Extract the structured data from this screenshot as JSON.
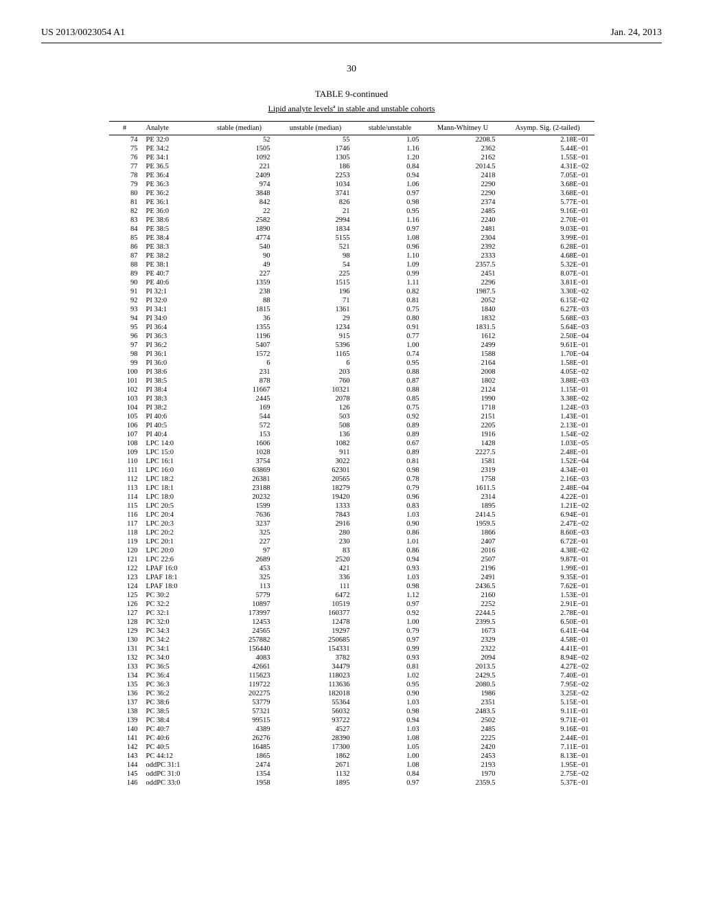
{
  "header": {
    "left": "US 2013/0023054 A1",
    "right": "Jan. 24, 2013"
  },
  "page_number": "30",
  "table": {
    "caption": "TABLE 9-continued",
    "subcaption": "Lipid analyte levelsª in stable and unstable cohorts",
    "columns": [
      "#",
      "Analyte",
      "stable (median)",
      "unstable (median)",
      "stable/unstable",
      "Mann-Whitney U",
      "Asymp. Sig. (2-tailed)"
    ],
    "rows": [
      [
        "74",
        "PE 32:0",
        "52",
        "55",
        "1.05",
        "2208.5",
        "2.18E−01"
      ],
      [
        "75",
        "PE 34:2",
        "1505",
        "1746",
        "1.16",
        "2362",
        "5.44E−01"
      ],
      [
        "76",
        "PE 34:1",
        "1092",
        "1305",
        "1.20",
        "2162",
        "1.55E−01"
      ],
      [
        "77",
        "PE 36.5",
        "221",
        "186",
        "0.84",
        "2014.5",
        "4.31E−02"
      ],
      [
        "78",
        "PE 36:4",
        "2409",
        "2253",
        "0.94",
        "2418",
        "7.05E−01"
      ],
      [
        "79",
        "PE 36:3",
        "974",
        "1034",
        "1.06",
        "2290",
        "3.68E−01"
      ],
      [
        "80",
        "PE 36:2",
        "3848",
        "3741",
        "0.97",
        "2290",
        "3.68E−01"
      ],
      [
        "81",
        "PE 36:1",
        "842",
        "826",
        "0.98",
        "2374",
        "5.77E−01"
      ],
      [
        "82",
        "PE 36:0",
        "22",
        "21",
        "0.95",
        "2485",
        "9.16E−01"
      ],
      [
        "83",
        "PE 38:6",
        "2582",
        "2994",
        "1.16",
        "2240",
        "2.70E−01"
      ],
      [
        "84",
        "PE 38:5",
        "1890",
        "1834",
        "0.97",
        "2481",
        "9.03E−01"
      ],
      [
        "85",
        "PE 38:4",
        "4774",
        "5155",
        "1.08",
        "2304",
        "3.99E−01"
      ],
      [
        "86",
        "PE 38:3",
        "540",
        "521",
        "0.96",
        "2392",
        "6.28E−01"
      ],
      [
        "87",
        "PE 38:2",
        "90",
        "98",
        "1.10",
        "2333",
        "4.68E−01"
      ],
      [
        "88",
        "PE 38:1",
        "49",
        "54",
        "1.09",
        "2357.5",
        "5.32E−01"
      ],
      [
        "89",
        "PE 40:7",
        "227",
        "225",
        "0.99",
        "2451",
        "8.07E−01"
      ],
      [
        "90",
        "PE 40:6",
        "1359",
        "1515",
        "1.11",
        "2296",
        "3.81E−01"
      ],
      [
        "91",
        "PI 32:1",
        "238",
        "196",
        "0.82",
        "1987.5",
        "3.30E−02"
      ],
      [
        "92",
        "PI 32:0",
        "88",
        "71",
        "0.81",
        "2052",
        "6.15E−02"
      ],
      [
        "93",
        "PI 34:1",
        "1815",
        "1361",
        "0.75",
        "1840",
        "6.27E−03"
      ],
      [
        "94",
        "PI 34:0",
        "36",
        "29",
        "0.80",
        "1832",
        "5.68E−03"
      ],
      [
        "95",
        "PI 36:4",
        "1355",
        "1234",
        "0.91",
        "1831.5",
        "5.64E−03"
      ],
      [
        "96",
        "PI 36:3",
        "1196",
        "915",
        "0.77",
        "1612",
        "2.50E−04"
      ],
      [
        "97",
        "PI 36:2",
        "5407",
        "5396",
        "1.00",
        "2499",
        "9.61E−01"
      ],
      [
        "98",
        "PI 36:1",
        "1572",
        "1165",
        "0.74",
        "1588",
        "1.70E−04"
      ],
      [
        "99",
        "PI 36:0",
        "6",
        "6",
        "0.95",
        "2164",
        "1.58E−01"
      ],
      [
        "100",
        "PI 38:6",
        "231",
        "203",
        "0.88",
        "2008",
        "4.05E−02"
      ],
      [
        "101",
        "PI 38:5",
        "878",
        "760",
        "0.87",
        "1802",
        "3.88E−03"
      ],
      [
        "102",
        "PI 38:4",
        "11667",
        "10321",
        "0.88",
        "2124",
        "1.15E−01"
      ],
      [
        "103",
        "PI 38:3",
        "2445",
        "2078",
        "0.85",
        "1990",
        "3.38E−02"
      ],
      [
        "104",
        "PI 38:2",
        "169",
        "126",
        "0.75",
        "1718",
        "1.24E−03"
      ],
      [
        "105",
        "PI 40:6",
        "544",
        "503",
        "0.92",
        "2151",
        "1.43E−01"
      ],
      [
        "106",
        "PI 40:5",
        "572",
        "508",
        "0.89",
        "2205",
        "2.13E−01"
      ],
      [
        "107",
        "PI 40:4",
        "153",
        "136",
        "0.89",
        "1916",
        "1.54E−02"
      ],
      [
        "108",
        "LPC 14:0",
        "1606",
        "1082",
        "0.67",
        "1428",
        "1.03E−05"
      ],
      [
        "109",
        "LPC 15:0",
        "1028",
        "911",
        "0.89",
        "2227.5",
        "2.48E−01"
      ],
      [
        "110",
        "LPC 16:1",
        "3754",
        "3022",
        "0.81",
        "1581",
        "1.52E−04"
      ],
      [
        "111",
        "LPC 16:0",
        "63869",
        "62301",
        "0.98",
        "2319",
        "4.34E−01"
      ],
      [
        "112",
        "LPC 18:2",
        "26381",
        "20565",
        "0.78",
        "1758",
        "2.16E−03"
      ],
      [
        "113",
        "LPC 18:1",
        "23188",
        "18279",
        "0.79",
        "1611.5",
        "2.48E−04"
      ],
      [
        "114",
        "LPC 18:0",
        "20232",
        "19420",
        "0.96",
        "2314",
        "4.22E−01"
      ],
      [
        "115",
        "LPC 20:5",
        "1599",
        "1333",
        "0.83",
        "1895",
        "1.21E−02"
      ],
      [
        "116",
        "LPC 20:4",
        "7636",
        "7843",
        "1.03",
        "2414.5",
        "6.94E−01"
      ],
      [
        "117",
        "LPC 20:3",
        "3237",
        "2916",
        "0.90",
        "1959.5",
        "2.47E−02"
      ],
      [
        "118",
        "LPC 20:2",
        "325",
        "280",
        "0.86",
        "1866",
        "8.60E−03"
      ],
      [
        "119",
        "LPC 20:1",
        "227",
        "230",
        "1.01",
        "2407",
        "6.72E−01"
      ],
      [
        "120",
        "LPC 20:0",
        "97",
        "83",
        "0.86",
        "2016",
        "4.38E−02"
      ],
      [
        "121",
        "LPC 22:6",
        "2689",
        "2520",
        "0.94",
        "2507",
        "9.87E−01"
      ],
      [
        "122",
        "LPAF 16:0",
        "453",
        "421",
        "0.93",
        "2196",
        "1.99E−01"
      ],
      [
        "123",
        "LPAF 18:1",
        "325",
        "336",
        "1.03",
        "2491",
        "9.35E−01"
      ],
      [
        "124",
        "LPAF 18:0",
        "113",
        "111",
        "0.98",
        "2436.5",
        "7.62E−01"
      ],
      [
        "125",
        "PC 30:2",
        "5779",
        "6472",
        "1.12",
        "2160",
        "1.53E−01"
      ],
      [
        "126",
        "PC 32:2",
        "10897",
        "10519",
        "0.97",
        "2252",
        "2.91E−01"
      ],
      [
        "127",
        "PC 32:1",
        "173997",
        "160377",
        "0.92",
        "2244.5",
        "2.78E−01"
      ],
      [
        "128",
        "PC 32:0",
        "12453",
        "12478",
        "1.00",
        "2399.5",
        "6.50E−01"
      ],
      [
        "129",
        "PC 34:3",
        "24565",
        "19297",
        "0.79",
        "1673",
        "6.41E−04"
      ],
      [
        "130",
        "PC 34:2",
        "257882",
        "250685",
        "0.97",
        "2329",
        "4.58E−01"
      ],
      [
        "131",
        "PC 34:1",
        "156440",
        "154331",
        "0.99",
        "2322",
        "4.41E−01"
      ],
      [
        "132",
        "PC 34:0",
        "4083",
        "3782",
        "0.93",
        "2094",
        "8.94E−02"
      ],
      [
        "133",
        "PC 36:5",
        "42661",
        "34479",
        "0.81",
        "2013.5",
        "4.27E−02"
      ],
      [
        "134",
        "PC 36:4",
        "115623",
        "118023",
        "1.02",
        "2429.5",
        "7.40E−01"
      ],
      [
        "135",
        "PC 36:3",
        "119722",
        "113636",
        "0.95",
        "2080.5",
        "7.95E−02"
      ],
      [
        "136",
        "PC 36:2",
        "202275",
        "182018",
        "0.90",
        "1986",
        "3.25E−02"
      ],
      [
        "137",
        "PC 38:6",
        "53779",
        "55364",
        "1.03",
        "2351",
        "5.15E−01"
      ],
      [
        "138",
        "PC 38:5",
        "57321",
        "56032",
        "0.98",
        "2483.5",
        "9.11E−01"
      ],
      [
        "139",
        "PC 38:4",
        "99515",
        "93722",
        "0.94",
        "2502",
        "9.71E−01"
      ],
      [
        "140",
        "PC 40:7",
        "4389",
        "4527",
        "1.03",
        "2485",
        "9.16E−01"
      ],
      [
        "141",
        "PC 40:6",
        "26276",
        "28390",
        "1.08",
        "2225",
        "2.44E−01"
      ],
      [
        "142",
        "PC 40:5",
        "16485",
        "17300",
        "1.05",
        "2420",
        "7.11E−01"
      ],
      [
        "143",
        "PC 44:12",
        "1865",
        "1862",
        "1.00",
        "2453",
        "8.13E−01"
      ],
      [
        "144",
        "oddPC 31:1",
        "2474",
        "2671",
        "1.08",
        "2193",
        "1.95E−01"
      ],
      [
        "145",
        "oddPC 31:0",
        "1354",
        "1132",
        "0.84",
        "1970",
        "2.75E−02"
      ],
      [
        "146",
        "oddPC 33:0",
        "1958",
        "1895",
        "0.97",
        "2359.5",
        "5.37E−01"
      ]
    ]
  }
}
